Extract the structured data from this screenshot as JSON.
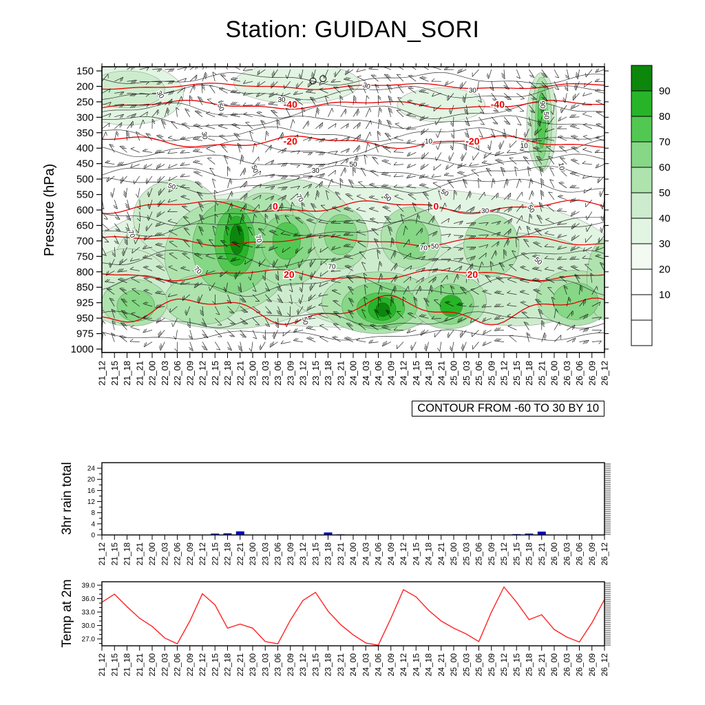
{
  "title": "Station: GUIDAN_SORI",
  "contour_note": "CONTOUR FROM -60 TO 30 BY 10",
  "time_labels": [
    "21_12",
    "21_15",
    "21_18",
    "21_21",
    "22_00",
    "22_03",
    "22_06",
    "22_09",
    "22_12",
    "22_15",
    "22_18",
    "22_21",
    "23_00",
    "23_03",
    "23_06",
    "23_09",
    "23_12",
    "23_15",
    "23_18",
    "23_21",
    "24_00",
    "24_03",
    "24_06",
    "24_09",
    "24_12",
    "24_15",
    "24_18",
    "24_21",
    "25_00",
    "25_03",
    "25_06",
    "25_09",
    "25_12",
    "25_15",
    "25_18",
    "25_21",
    "26_00",
    "26_03",
    "26_06",
    "26_09",
    "26_12"
  ],
  "chart_data": [
    {
      "type": "heatmap",
      "ylabel": "Pressure (hPa)",
      "pressure_levels": [
        "150",
        "200",
        "250",
        "300",
        "350",
        "400",
        "450",
        "500",
        "550",
        "600",
        "650",
        "700",
        "750",
        "800",
        "850",
        "925",
        "950",
        "975",
        "1000"
      ],
      "colorbar": {
        "labels": [
          "10",
          "20",
          "30",
          "40",
          "50",
          "60",
          "70",
          "80",
          "90"
        ],
        "colors_bottom_to_top": [
          "#ffffff",
          "#ffffff",
          "#ffffff",
          "#f2faf2",
          "#e2f4e2",
          "#cdeccd",
          "#aee3ae",
          "#86d786",
          "#52c852",
          "#28b428",
          "#0c870c"
        ]
      },
      "red_contour_color": "#e80000",
      "red_contours": [
        {
          "p": 1.0,
          "a": 0.15,
          "label": "",
          "lt": []
        },
        {
          "p": 2.2,
          "a": 0.22,
          "label": "-40",
          "lt": [
            15,
            31.5
          ]
        },
        {
          "p": 4.6,
          "a": 0.3,
          "label": "-20",
          "lt": [
            15,
            29.5
          ]
        },
        {
          "p": 8.8,
          "a": 0.32,
          "label": "0",
          "lt": [
            13.8,
            26.6
          ]
        },
        {
          "p": 11.0,
          "a": 0.25,
          "label": "",
          "lt": []
        },
        {
          "p": 13.2,
          "a": 0.28,
          "label": "20",
          "lt": [
            14.9,
            29.5
          ]
        },
        {
          "p": 15.5,
          "a": 0.7,
          "label": "",
          "lt": []
        }
      ],
      "black_contours": [
        {
          "p": 0.5,
          "a": 0.3
        },
        {
          "p": 1.4,
          "a": 0.35
        },
        {
          "p": 2.6,
          "a": 0.4
        },
        {
          "p": 3.3,
          "a": 0.3
        },
        {
          "p": 4.1,
          "a": 0.35
        },
        {
          "p": 5.0,
          "a": 0.4
        },
        {
          "p": 5.8,
          "a": 0.3
        },
        {
          "p": 6.6,
          "a": 0.35
        },
        {
          "p": 7.4,
          "a": 0.4
        },
        {
          "p": 9.4,
          "a": 0.45
        },
        {
          "p": 10.2,
          "a": 0.4
        },
        {
          "p": 12.1,
          "a": 0.45
        },
        {
          "p": 13.9,
          "a": 0.5
        },
        {
          "p": 16.1,
          "a": 0.4
        },
        {
          "p": 17.1,
          "a": 0.25
        }
      ],
      "black_contour_labels": [
        [
          4.5,
          1.6,
          "30",
          60
        ],
        [
          14.3,
          2.0,
          "30",
          0
        ],
        [
          21,
          1.1,
          "30",
          20
        ],
        [
          29.5,
          1.4,
          "30",
          0
        ],
        [
          8,
          4.2,
          "30",
          80
        ],
        [
          12,
          6.4,
          "50",
          70
        ],
        [
          20,
          6.2,
          "50",
          0
        ],
        [
          27.2,
          8.0,
          "50",
          30
        ],
        [
          34,
          9.0,
          "50",
          60
        ],
        [
          9.3,
          2.4,
          "50",
          70
        ],
        [
          17,
          6.6,
          "30",
          0
        ],
        [
          22.6,
          8.3,
          "50",
          45
        ],
        [
          30.5,
          9.2,
          "30",
          0
        ],
        [
          26.5,
          11.5,
          "50",
          0
        ],
        [
          34.6,
          12.4,
          "50",
          45
        ],
        [
          16,
          16.2,
          "50",
          80
        ],
        [
          7.5,
          13.0,
          "70",
          45
        ],
        [
          26,
          4.7,
          "10",
          0
        ],
        [
          33.6,
          5.0,
          "10",
          0
        ],
        [
          36.4,
          6.2,
          "10",
          80
        ],
        [
          12.3,
          10.9,
          "70",
          75
        ],
        [
          18.3,
          12.8,
          "70",
          0
        ],
        [
          25.6,
          11.6,
          "70",
          0
        ],
        [
          15.6,
          8.3,
          "70",
          60
        ],
        [
          34.9,
          2.2,
          "90",
          85
        ],
        [
          35.2,
          2.9,
          "50",
          85
        ],
        [
          5.5,
          7.6,
          "50",
          20
        ],
        [
          2.2,
          10.6,
          "70",
          70
        ]
      ],
      "rh_blobs": [
        [
          20,
          12,
          21,
          4.6,
          30
        ],
        [
          2,
          1.5,
          4.5,
          2.0,
          30
        ],
        [
          15.5,
          0.8,
          5,
          1.3,
          30
        ],
        [
          27,
          2.2,
          3.5,
          1.1,
          30
        ],
        [
          10,
          12.5,
          9,
          4.2,
          40
        ],
        [
          22,
          13.5,
          7.5,
          3.2,
          40
        ],
        [
          33,
          13.5,
          7,
          3.0,
          40
        ],
        [
          15,
          11,
          5.5,
          4.0,
          40
        ],
        [
          2,
          14,
          3.5,
          2.5,
          40
        ],
        [
          6,
          9.5,
          3.5,
          2.5,
          40
        ],
        [
          2,
          1.2,
          3,
          1.2,
          40
        ],
        [
          35,
          3.3,
          1.2,
          3.2,
          40
        ],
        [
          10,
          12,
          5,
          3.6,
          50
        ],
        [
          14.8,
          11.3,
          3,
          2.6,
          50
        ],
        [
          19,
          10.8,
          2.2,
          2.0,
          50
        ],
        [
          22,
          15,
          4.5,
          2.0,
          50
        ],
        [
          8,
          14.8,
          3,
          1.6,
          50
        ],
        [
          27.6,
          14.9,
          3,
          1.8,
          50
        ],
        [
          37.6,
          14.7,
          3,
          1.8,
          50
        ],
        [
          24.6,
          10.8,
          2.4,
          2.0,
          50
        ],
        [
          31,
          11.3,
          2.2,
          2.0,
          50
        ],
        [
          2.6,
          15,
          2.6,
          1.5,
          50
        ],
        [
          40,
          13.5,
          1.4,
          2.6,
          50
        ],
        [
          35,
          3.4,
          0.8,
          3.0,
          50
        ],
        [
          13,
          9.3,
          2.2,
          1.4,
          50
        ],
        [
          10.4,
          11.4,
          3.2,
          3.0,
          60
        ],
        [
          22.1,
          15.2,
          3.0,
          1.5,
          60
        ],
        [
          27.7,
          15.1,
          1.9,
          1.3,
          60
        ],
        [
          37.7,
          14.9,
          1.8,
          1.2,
          60
        ],
        [
          14.7,
          11.1,
          2.0,
          1.8,
          60
        ],
        [
          35,
          3.3,
          0.5,
          2.4,
          60
        ],
        [
          2.7,
          15.2,
          1.5,
          1.0,
          60
        ],
        [
          24.7,
          10.9,
          1.3,
          1.3,
          60
        ],
        [
          19,
          10.6,
          1.3,
          1.3,
          60
        ],
        [
          10.6,
          11.1,
          1.6,
          2.2,
          70
        ],
        [
          22.2,
          15.35,
          1.9,
          1.0,
          70
        ],
        [
          14.7,
          11.0,
          1.1,
          1.2,
          70
        ],
        [
          35,
          3.2,
          0.32,
          1.8,
          70
        ],
        [
          10.7,
          11.0,
          1.0,
          1.6,
          80
        ],
        [
          22.3,
          15.4,
          1.1,
          0.75,
          80
        ],
        [
          27.8,
          15.2,
          0.9,
          0.7,
          80
        ],
        [
          10.75,
          10.9,
          0.55,
          1.0,
          90
        ],
        [
          22.35,
          15.45,
          0.55,
          0.45,
          90
        ]
      ],
      "calm_symbols": [
        [
          16.8,
          0.65
        ],
        [
          17.6,
          0.5
        ]
      ]
    },
    {
      "type": "bar",
      "ylabel": "3hr rain total",
      "yticks": [
        "0",
        "4",
        "8",
        "12",
        "16",
        "20",
        "24"
      ],
      "ylim": [
        0,
        26
      ],
      "bar_color": "#0000cc",
      "values": [
        0,
        0,
        0,
        0,
        0,
        0,
        0,
        0,
        0,
        0.5,
        0.6,
        1.3,
        0,
        0,
        0,
        0,
        0,
        0,
        0.9,
        0.2,
        0,
        0,
        0,
        0,
        0,
        0,
        0,
        0,
        0,
        0,
        0,
        0,
        0,
        0.3,
        0.5,
        1.2,
        0,
        0,
        0,
        0,
        0
      ]
    },
    {
      "type": "line",
      "ylabel": "Temp at 2m",
      "yticks": [
        "27.0",
        "30.0",
        "33.0",
        "36.0",
        "39.0"
      ],
      "ytick_values": [
        27,
        30,
        33,
        36,
        39
      ],
      "ylim": [
        25.4,
        40
      ],
      "line_color": "#ff2222",
      "values": [
        35.2,
        37.0,
        34.2,
        31.6,
        29.8,
        27.2,
        25.9,
        31.0,
        37.1,
        34.6,
        29.4,
        30.3,
        29.4,
        26.4,
        25.9,
        31.2,
        35.6,
        37.4,
        33.2,
        30.2,
        27.9,
        26.1,
        25.6,
        31.6,
        38.0,
        36.4,
        33.4,
        31.0,
        29.4,
        28.1,
        26.4,
        33.0,
        38.6,
        35.2,
        31.3,
        32.4,
        29.1,
        27.4,
        26.3,
        30.6,
        35.8
      ]
    }
  ]
}
